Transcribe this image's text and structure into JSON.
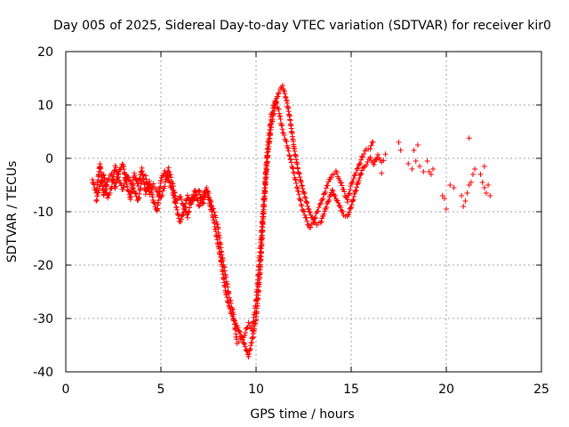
{
  "chart_data": {
    "type": "scatter",
    "title": "Day 005 of 2025, Sidereal Day-to-day VTEC variation (SDTVAR) for receiver kir0",
    "xlabel": "GPS time / hours",
    "ylabel": "SDTVAR / TECUs",
    "xlim": [
      0,
      25
    ],
    "ylim": [
      -40,
      20
    ],
    "xticks": [
      "0",
      "5",
      "10",
      "15",
      "20",
      "25"
    ],
    "yticks": [
      "-40",
      "-30",
      "-20",
      "-10",
      "0",
      "10",
      "20"
    ],
    "grid": true,
    "marker": "+",
    "color": "#ff0000",
    "series": [
      {
        "name": "SDTVAR",
        "trace": [
          [
            1.4,
            -4.0
          ],
          [
            1.6,
            -6.5
          ],
          [
            1.8,
            -1.0
          ],
          [
            2.0,
            -7.0
          ],
          [
            2.2,
            -4.0
          ],
          [
            2.4,
            -3.0
          ],
          [
            2.6,
            -5.5
          ],
          [
            2.8,
            -2.5
          ],
          [
            3.0,
            -1.0
          ],
          [
            3.2,
            -5.0
          ],
          [
            3.4,
            -7.5
          ],
          [
            3.6,
            -3.0
          ],
          [
            3.8,
            -5.0
          ],
          [
            4.0,
            -2.0
          ],
          [
            4.2,
            -6.5
          ],
          [
            4.4,
            -4.5
          ],
          [
            4.6,
            -8.0
          ],
          [
            4.8,
            -10.0
          ],
          [
            5.0,
            -4.0
          ],
          [
            5.2,
            -2.5
          ],
          [
            5.4,
            -4.0
          ],
          [
            5.6,
            -6.0
          ],
          [
            5.8,
            -9.0
          ],
          [
            6.0,
            -12.0
          ],
          [
            6.2,
            -10.0
          ],
          [
            6.4,
            -7.0
          ],
          [
            6.6,
            -8.5
          ],
          [
            6.8,
            -7.0
          ],
          [
            7.0,
            -6.0
          ],
          [
            7.2,
            -8.5
          ],
          [
            7.4,
            -6.0
          ],
          [
            7.6,
            -9.0
          ],
          [
            7.8,
            -12.0
          ],
          [
            8.0,
            -16.0
          ],
          [
            8.2,
            -20.0
          ],
          [
            8.4,
            -25.0
          ],
          [
            8.6,
            -28.0
          ],
          [
            8.8,
            -30.0
          ],
          [
            9.0,
            -31.5
          ],
          [
            9.2,
            -33.0
          ],
          [
            9.4,
            -35.0
          ],
          [
            9.6,
            -37.0
          ],
          [
            9.8,
            -34.0
          ],
          [
            10.0,
            -30.0
          ],
          [
            10.2,
            -22.0
          ],
          [
            10.4,
            -10.0
          ],
          [
            10.6,
            0.0
          ],
          [
            10.8,
            6.0
          ],
          [
            11.0,
            10.0
          ],
          [
            11.2,
            12.5
          ],
          [
            11.4,
            13.5
          ],
          [
            11.6,
            11.0
          ],
          [
            11.8,
            7.0
          ],
          [
            12.0,
            2.0
          ],
          [
            12.2,
            -2.0
          ],
          [
            12.4,
            -5.0
          ],
          [
            12.6,
            -7.5
          ],
          [
            12.8,
            -10.0
          ],
          [
            13.0,
            -11.5
          ],
          [
            13.2,
            -12.5
          ],
          [
            13.4,
            -12.0
          ],
          [
            13.6,
            -10.0
          ],
          [
            13.8,
            -8.0
          ],
          [
            14.0,
            -6.0
          ],
          [
            14.2,
            -7.5
          ],
          [
            14.4,
            -9.0
          ],
          [
            14.6,
            -10.5
          ],
          [
            14.8,
            -11.0
          ],
          [
            15.0,
            -9.0
          ],
          [
            15.2,
            -6.5
          ],
          [
            15.4,
            -4.0
          ],
          [
            15.6,
            -2.0
          ],
          [
            15.8,
            -1.0
          ],
          [
            16.0,
            0.0
          ],
          [
            16.2,
            -1.0
          ],
          [
            16.4,
            0.5
          ],
          [
            16.6,
            -0.5
          ],
          [
            16.8,
            -0.5
          ]
        ],
        "secondary_trace": [
          [
            1.6,
            -8.0
          ],
          [
            1.8,
            -5.0
          ],
          [
            2.0,
            -3.0
          ],
          [
            2.2,
            -7.5
          ],
          [
            2.4,
            -5.5
          ],
          [
            2.6,
            -1.5
          ],
          [
            2.8,
            -4.0
          ],
          [
            3.0,
            -6.0
          ],
          [
            3.2,
            -3.0
          ],
          [
            3.4,
            -4.5
          ],
          [
            3.6,
            -6.0
          ],
          [
            3.8,
            -8.0
          ],
          [
            4.0,
            -4.0
          ],
          [
            4.2,
            -3.5
          ],
          [
            4.4,
            -6.5
          ],
          [
            4.6,
            -5.0
          ],
          [
            4.8,
            -6.0
          ],
          [
            5.0,
            -7.5
          ],
          [
            5.2,
            -5.0
          ],
          [
            5.4,
            -2.0
          ],
          [
            5.6,
            -4.5
          ],
          [
            5.8,
            -8.0
          ],
          [
            6.0,
            -7.0
          ],
          [
            6.2,
            -9.0
          ],
          [
            6.4,
            -11.0
          ],
          [
            6.6,
            -7.5
          ],
          [
            6.8,
            -6.0
          ],
          [
            7.0,
            -9.0
          ],
          [
            7.2,
            -7.0
          ],
          [
            7.4,
            -5.5
          ],
          [
            7.6,
            -8.0
          ],
          [
            7.8,
            -10.0
          ],
          [
            8.0,
            -13.0
          ],
          [
            8.2,
            -18.0
          ],
          [
            8.4,
            -22.0
          ],
          [
            8.6,
            -26.0
          ],
          [
            8.8,
            -29.0
          ],
          [
            9.0,
            -34.5
          ],
          [
            9.2,
            -34.0
          ],
          [
            9.4,
            -33.0
          ],
          [
            9.6,
            -31.0
          ],
          [
            9.8,
            -32.0
          ],
          [
            10.0,
            -27.0
          ],
          [
            10.2,
            -18.0
          ],
          [
            10.4,
            -8.0
          ],
          [
            10.6,
            2.0
          ],
          [
            10.8,
            8.0
          ],
          [
            11.0,
            11.0
          ],
          [
            11.2,
            9.0
          ],
          [
            11.4,
            5.0
          ],
          [
            11.6,
            3.0
          ],
          [
            11.8,
            0.0
          ],
          [
            12.0,
            -3.0
          ],
          [
            12.2,
            -6.0
          ],
          [
            12.4,
            -9.0
          ],
          [
            12.6,
            -11.0
          ],
          [
            12.8,
            -13.0
          ],
          [
            13.0,
            -12.0
          ],
          [
            13.2,
            -10.0
          ],
          [
            13.4,
            -8.5
          ],
          [
            13.6,
            -6.5
          ],
          [
            13.8,
            -4.5
          ],
          [
            14.0,
            -3.0
          ],
          [
            14.2,
            -2.5
          ],
          [
            14.4,
            -4.0
          ],
          [
            14.6,
            -6.0
          ],
          [
            14.8,
            -8.0
          ],
          [
            15.0,
            -5.0
          ],
          [
            15.2,
            -3.0
          ],
          [
            15.4,
            -1.5
          ],
          [
            15.6,
            0.5
          ],
          [
            15.8,
            1.5
          ],
          [
            16.0,
            2.0
          ],
          [
            16.2,
            3.5
          ]
        ],
        "clusters": [
          [
            17.6,
            1.5
          ],
          [
            17.5,
            3.0
          ],
          [
            18.0,
            -1.0
          ],
          [
            18.2,
            -2.0
          ],
          [
            18.3,
            1.5
          ],
          [
            18.4,
            -0.5
          ],
          [
            18.5,
            2.5
          ],
          [
            18.6,
            -1.5
          ],
          [
            18.8,
            -2.5
          ],
          [
            19.0,
            -0.5
          ],
          [
            19.1,
            -2.5
          ],
          [
            19.2,
            -3.0
          ],
          [
            19.3,
            -2.0
          ],
          [
            16.8,
            0.8
          ],
          [
            16.6,
            -2.8
          ],
          [
            19.8,
            -7.0
          ],
          [
            19.9,
            -7.5
          ],
          [
            20.0,
            -9.5
          ],
          [
            20.2,
            -5.0
          ],
          [
            20.4,
            -5.5
          ],
          [
            20.8,
            -7.0
          ],
          [
            20.9,
            -9.0
          ],
          [
            21.0,
            -8.0
          ],
          [
            21.1,
            -6.5
          ],
          [
            21.2,
            -5.0
          ],
          [
            21.3,
            -4.5
          ],
          [
            21.4,
            -3.0
          ],
          [
            21.5,
            -2.0
          ],
          [
            21.2,
            3.8
          ],
          [
            21.8,
            -3.0
          ],
          [
            21.9,
            -4.5
          ],
          [
            22.0,
            -5.5
          ],
          [
            22.1,
            -6.5
          ],
          [
            22.2,
            -5.0
          ],
          [
            22.3,
            -7.0
          ],
          [
            22.0,
            -1.5
          ]
        ]
      }
    ]
  }
}
